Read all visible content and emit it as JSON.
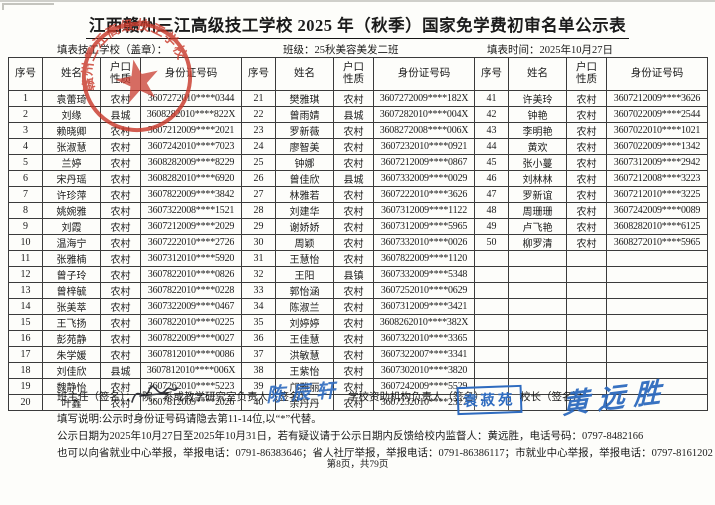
{
  "page": {
    "title": "江西赣州三江高级技工学校 2025 年（秋季）国家免学费初审名单公示表",
    "school_label": "填表技工学校（盖章）：",
    "class_label": "班级：25秋美容美发二班",
    "date_label": "填表时间：2025年10月27日",
    "page_footer": "第8页，共79页"
  },
  "table": {
    "headers": [
      "序号",
      "姓名",
      "户口性质",
      "身份证号码"
    ],
    "rows_per_column": 20,
    "students": [
      {
        "no": 1,
        "name": "袁蕾琦",
        "hukou": "农村",
        "id": "3607272010****0344"
      },
      {
        "no": 2,
        "name": "刘缘",
        "hukou": "县城",
        "id": "3608282010****822X"
      },
      {
        "no": 3,
        "name": "赖晓卿",
        "hukou": "农村",
        "id": "3607212009****2021"
      },
      {
        "no": 4,
        "name": "张淑慧",
        "hukou": "农村",
        "id": "3607242010****7023"
      },
      {
        "no": 5,
        "name": "兰婷",
        "hukou": "农村",
        "id": "3608282009****8229"
      },
      {
        "no": 6,
        "name": "宋丹瑶",
        "hukou": "农村",
        "id": "3608282010****6920"
      },
      {
        "no": 7,
        "name": "许珍萍",
        "hukou": "农村",
        "id": "3607822009****3842"
      },
      {
        "no": 8,
        "name": "姚婉雅",
        "hukou": "农村",
        "id": "3607322008****1521"
      },
      {
        "no": 9,
        "name": "刘霞",
        "hukou": "农村",
        "id": "3607212009****2029"
      },
      {
        "no": 10,
        "name": "温海宁",
        "hukou": "农村",
        "id": "3607222010****2726"
      },
      {
        "no": 11,
        "name": "张雅楠",
        "hukou": "农村",
        "id": "3607312010****5920"
      },
      {
        "no": 12,
        "name": "曾子玲",
        "hukou": "农村",
        "id": "3607822010****0826"
      },
      {
        "no": 13,
        "name": "曾梓毓",
        "hukou": "农村",
        "id": "3607822010****0228"
      },
      {
        "no": 14,
        "name": "张美萃",
        "hukou": "农村",
        "id": "3607322009****0467"
      },
      {
        "no": 15,
        "name": "王飞扬",
        "hukou": "农村",
        "id": "3607822010****0225"
      },
      {
        "no": 16,
        "name": "彭苑静",
        "hukou": "农村",
        "id": "3607822009****0027"
      },
      {
        "no": 17,
        "name": "朱学媛",
        "hukou": "农村",
        "id": "3607812010****0086"
      },
      {
        "no": 18,
        "name": "刘佳欣",
        "hukou": "县城",
        "id": "3607812010****006X"
      },
      {
        "no": 19,
        "name": "魏静怡",
        "hukou": "农村",
        "id": "3607262010****5223"
      },
      {
        "no": 20,
        "name": "叶鑫",
        "hukou": "农村",
        "id": "3607812009****2026"
      },
      {
        "no": 21,
        "name": "樊雅琪",
        "hukou": "农村",
        "id": "3607272009****182X"
      },
      {
        "no": 22,
        "name": "曾雨婧",
        "hukou": "县城",
        "id": "3607282010****004X"
      },
      {
        "no": 23,
        "name": "罗新薇",
        "hukou": "农村",
        "id": "3608272008****006X"
      },
      {
        "no": 24,
        "name": "廖智美",
        "hukou": "农村",
        "id": "3607232010****0921"
      },
      {
        "no": 25,
        "name": "钟娜",
        "hukou": "农村",
        "id": "3607212009****0867"
      },
      {
        "no": 26,
        "name": "曾佳欣",
        "hukou": "县城",
        "id": "3607332009****0029"
      },
      {
        "no": 27,
        "name": "林雅若",
        "hukou": "农村",
        "id": "3607222010****3626"
      },
      {
        "no": 28,
        "name": "刘建华",
        "hukou": "农村",
        "id": "3607312009****1122"
      },
      {
        "no": 29,
        "name": "谢娇娇",
        "hukou": "农村",
        "id": "3607312009****5965"
      },
      {
        "no": 30,
        "name": "周颖",
        "hukou": "农村",
        "id": "3607332010****0026"
      },
      {
        "no": 31,
        "name": "王慧怡",
        "hukou": "农村",
        "id": "3607822009****1120"
      },
      {
        "no": 32,
        "name": "王阳",
        "hukou": "县镇",
        "id": "3607332009****5348"
      },
      {
        "no": 33,
        "name": "郭怡涵",
        "hukou": "农村",
        "id": "3607252010****0629"
      },
      {
        "no": 34,
        "name": "陈淑兰",
        "hukou": "农村",
        "id": "3607312009****3421"
      },
      {
        "no": 35,
        "name": "刘婷婷",
        "hukou": "农村",
        "id": "3608262010****382X"
      },
      {
        "no": 36,
        "name": "王佳慧",
        "hukou": "农村",
        "id": "3607322010****3365"
      },
      {
        "no": 37,
        "name": "洪敏慧",
        "hukou": "农村",
        "id": "3607322007****3341"
      },
      {
        "no": 38,
        "name": "王紫怡",
        "hukou": "农村",
        "id": "3607302010****3820"
      },
      {
        "no": 39,
        "name": "邝雅丽",
        "hukou": "农村",
        "id": "3607242009****5529"
      },
      {
        "no": 40,
        "name": "余丹丹",
        "hukou": "农村",
        "id": "3607232010****2327"
      },
      {
        "no": 41,
        "name": "许美玲",
        "hukou": "农村",
        "id": "3607212009****3626"
      },
      {
        "no": 42,
        "name": "钟艳",
        "hukou": "农村",
        "id": "3607022009****2544"
      },
      {
        "no": 43,
        "name": "李明艳",
        "hukou": "农村",
        "id": "3607022010****1021"
      },
      {
        "no": 44,
        "name": "黄欢",
        "hukou": "农村",
        "id": "3607022009****1342"
      },
      {
        "no": 45,
        "name": "张小蔓",
        "hukou": "农村",
        "id": "3607312009****2942"
      },
      {
        "no": 46,
        "name": "刘林林",
        "hukou": "农村",
        "id": "3607212008****3223"
      },
      {
        "no": 47,
        "name": "罗新谊",
        "hukou": "农村",
        "id": "3607212010****3225"
      },
      {
        "no": 48,
        "name": "周珊珊",
        "hukou": "农村",
        "id": "3607242009****0089"
      },
      {
        "no": 49,
        "name": "卢飞艳",
        "hukou": "农村",
        "id": "3608282010****6125"
      },
      {
        "no": 50,
        "name": "柳罗清",
        "hukou": "农村",
        "id": "3608272010****5965"
      }
    ]
  },
  "signatures": {
    "class_head_label": "班主任（签名）：",
    "dept_head_label": "院、系或教学研究室负责人（签名）：",
    "aid_head_label": "学校资助机构负责人（签名）：",
    "principal_label": "校长（签名）：",
    "dept_head_name": "陈辰轩",
    "aid_head_name": "袁菽苑",
    "principal_name": "黄远胜"
  },
  "notes": {
    "line1": "填写说明:公示时身份证号码请隐去第11-14位,以“*”代替。",
    "line2": "公示日期为2025年10月27日至2025年10月31日，若有疑议请于公示日期内反馈给校内监督人：黄远胜，电话号码：0797-8482166",
    "line3": "也可以向省就业中心举报，举报电话：0791-86383646；省人社厅举报，举报电话：0791-86386117；市就业中心举报，举报电话：0797-8161202"
  },
  "seal": {
    "red_seal_text": "赣州三江高级技工学校",
    "red_color": "#c93a2c",
    "blue_color": "#2e6bbf"
  }
}
